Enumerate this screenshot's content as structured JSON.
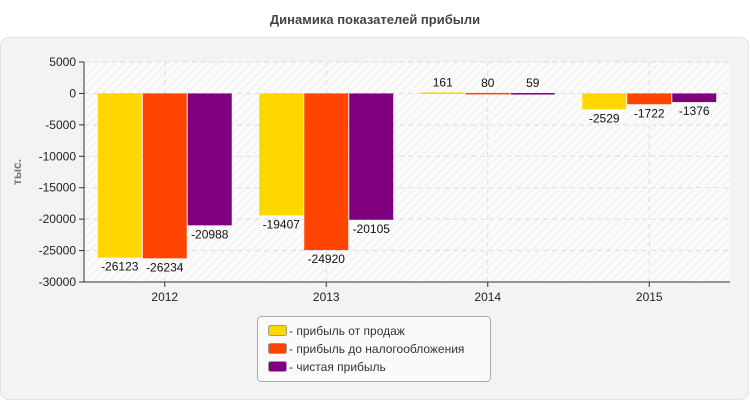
{
  "chart_data": {
    "type": "bar",
    "title": "Динамика показателей прибыли",
    "ylabel": "тыс.",
    "xlabel": "",
    "categories": [
      "2012",
      "2013",
      "2014",
      "2015"
    ],
    "ylim": [
      -30000,
      5000
    ],
    "yticks": [
      5000,
      0,
      -5000,
      -10000,
      -15000,
      -20000,
      -25000,
      -30000
    ],
    "grid": true,
    "legend_position": "bottom-center",
    "series": [
      {
        "name": "- прибыль от продаж",
        "color": "#FFD700",
        "values": [
          -26123,
          -19407,
          161,
          -2529
        ]
      },
      {
        "name": "- прибыль до налогообложения",
        "color": "#FF4500",
        "values": [
          -26234,
          -24920,
          80,
          -1722
        ]
      },
      {
        "name": "- чистая прибыль",
        "color": "#800080",
        "values": [
          -20988,
          -20105,
          59,
          -1376
        ]
      }
    ]
  }
}
